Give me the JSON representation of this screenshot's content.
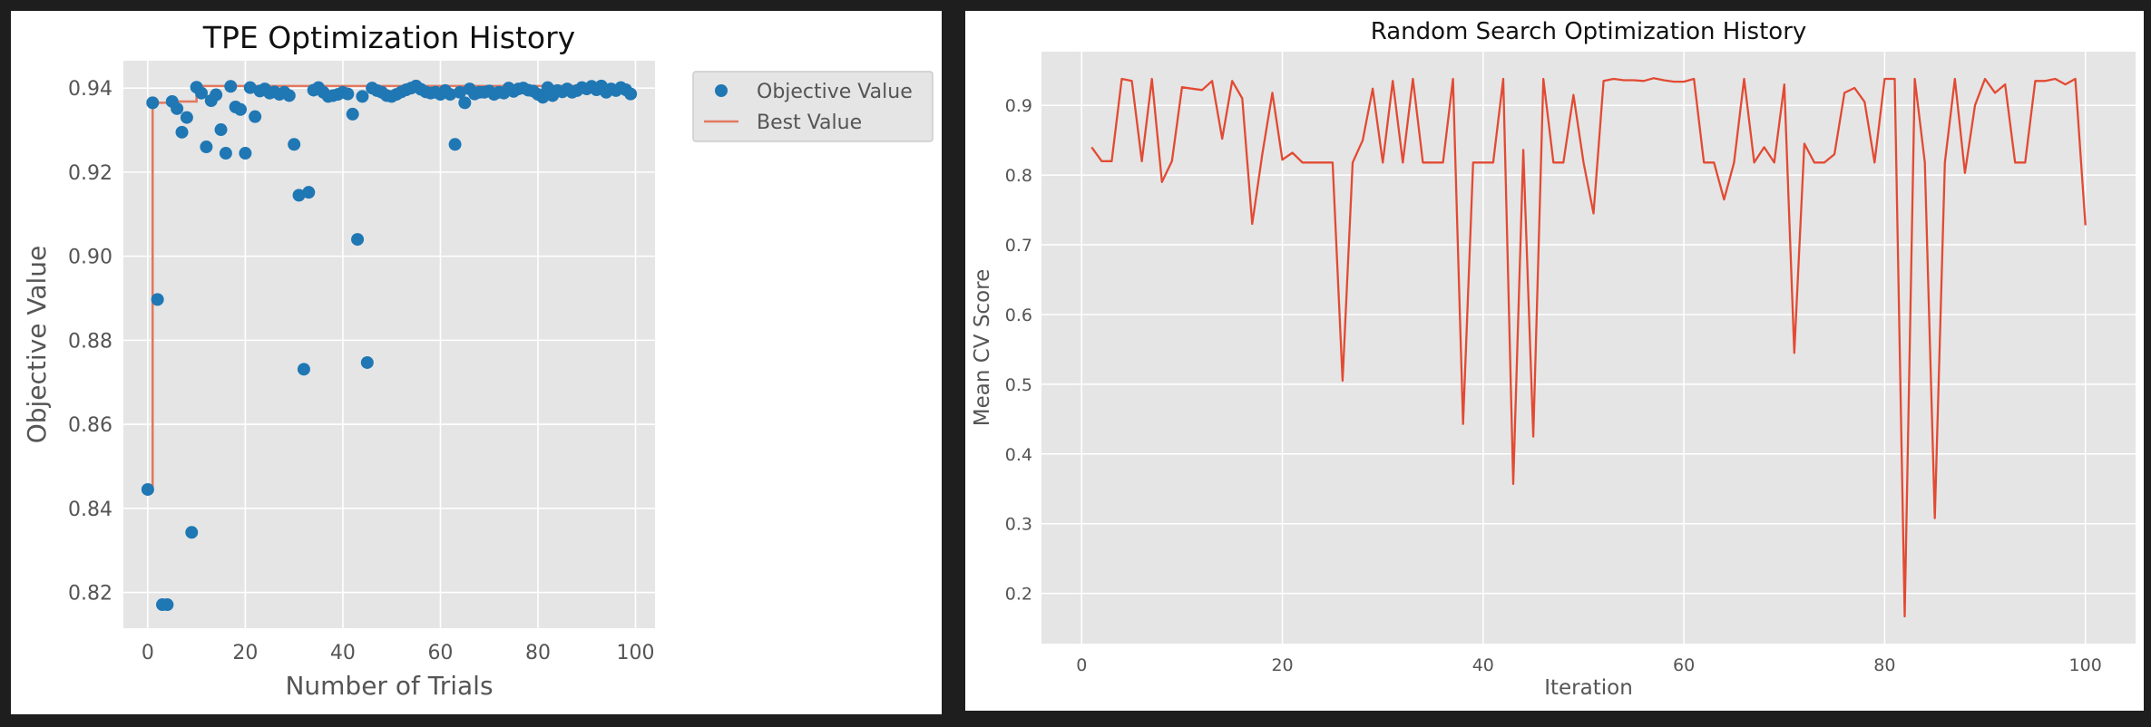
{
  "chart_data": [
    {
      "type": "scatter",
      "title": "TPE Optimization History",
      "xlabel": "Number of Trials",
      "ylabel": "Objective Value",
      "xlim": [
        -5,
        104
      ],
      "ylim": [
        0.8115,
        0.9465
      ],
      "xticks": [
        0,
        20,
        40,
        60,
        80,
        100
      ],
      "yticks": [
        0.82,
        0.84,
        0.86,
        0.88,
        0.9,
        0.92,
        0.94
      ],
      "ytick_labels": [
        "0.82",
        "0.84",
        "0.86",
        "0.88",
        "0.90",
        "0.92",
        "0.94"
      ],
      "grid": true,
      "legend_position": "outside-top-right",
      "series": [
        {
          "name": "Objective Value",
          "kind": "scatter",
          "color": "#1f77b4",
          "x": [
            0,
            1,
            2,
            3,
            4,
            5,
            6,
            7,
            8,
            9,
            10,
            11,
            12,
            13,
            14,
            15,
            16,
            17,
            18,
            19,
            20,
            21,
            22,
            23,
            24,
            25,
            26,
            27,
            28,
            29,
            30,
            31,
            32,
            33,
            34,
            35,
            36,
            37,
            38,
            39,
            40,
            41,
            42,
            43,
            44,
            45,
            46,
            47,
            48,
            49,
            50,
            51,
            52,
            53,
            54,
            55,
            56,
            57,
            58,
            59,
            60,
            61,
            62,
            63,
            64,
            65,
            66,
            67,
            68,
            69,
            70,
            71,
            72,
            73,
            74,
            75,
            76,
            77,
            78,
            79,
            80,
            81,
            82,
            83,
            84,
            85,
            86,
            87,
            88,
            89,
            90,
            91,
            92,
            93,
            94,
            95,
            96,
            97,
            98,
            99
          ],
          "y": [
            0.8445,
            0.9365,
            0.8897,
            0.8171,
            0.8171,
            0.9368,
            0.9351,
            0.9295,
            0.933,
            0.8343,
            0.9402,
            0.9388,
            0.926,
            0.937,
            0.9384,
            0.9301,
            0.9245,
            0.9404,
            0.9355,
            0.9349,
            0.9245,
            0.9401,
            0.9332,
            0.9393,
            0.9398,
            0.9388,
            0.9391,
            0.9385,
            0.939,
            0.9382,
            0.9266,
            0.9145,
            0.8731,
            0.9152,
            0.9395,
            0.9401,
            0.939,
            0.938,
            0.9382,
            0.9385,
            0.939,
            0.9386,
            0.9338,
            0.904,
            0.938,
            0.8747,
            0.94,
            0.9394,
            0.939,
            0.9382,
            0.938,
            0.9385,
            0.9391,
            0.9396,
            0.94,
            0.9405,
            0.9397,
            0.9391,
            0.9388,
            0.939,
            0.9385,
            0.9394,
            0.9385,
            0.9266,
            0.939,
            0.9365,
            0.9398,
            0.9386,
            0.939,
            0.939,
            0.9393,
            0.9385,
            0.939,
            0.9388,
            0.94,
            0.9392,
            0.9398,
            0.94,
            0.9395,
            0.9393,
            0.9385,
            0.9378,
            0.9401,
            0.9382,
            0.9394,
            0.9391,
            0.9398,
            0.939,
            0.9394,
            0.9401,
            0.9398,
            0.9404,
            0.9396,
            0.9405,
            0.939,
            0.9398,
            0.9394,
            0.9401,
            0.9396,
            0.9386
          ]
        },
        {
          "name": "Best Value",
          "kind": "step-line",
          "color": "#e2785f",
          "x": [
            0,
            1,
            5,
            10,
            99
          ],
          "y": [
            0.8445,
            0.9365,
            0.9368,
            0.9405,
            0.9405
          ]
        }
      ]
    },
    {
      "type": "line",
      "title": "Random Search Optimization History",
      "xlabel": "Iteration",
      "ylabel": "Mean CV Score",
      "xlim": [
        -4,
        105
      ],
      "ylim": [
        0.128,
        0.977
      ],
      "xticks": [
        0,
        20,
        40,
        60,
        80,
        100
      ],
      "yticks": [
        0.2,
        0.3,
        0.4,
        0.5,
        0.6,
        0.7,
        0.8,
        0.9
      ],
      "grid": true,
      "series": [
        {
          "color": "#e24a33",
          "x": [
            1,
            2,
            3,
            4,
            5,
            6,
            7,
            8,
            9,
            10,
            11,
            12,
            13,
            14,
            15,
            16,
            17,
            18,
            19,
            20,
            21,
            22,
            23,
            24,
            25,
            26,
            27,
            28,
            29,
            30,
            31,
            32,
            33,
            34,
            35,
            36,
            37,
            38,
            39,
            40,
            41,
            42,
            43,
            44,
            45,
            46,
            47,
            48,
            49,
            50,
            51,
            52,
            53,
            54,
            55,
            56,
            57,
            58,
            59,
            60,
            61,
            62,
            63,
            64,
            65,
            66,
            67,
            68,
            69,
            70,
            71,
            72,
            73,
            74,
            75,
            76,
            77,
            78,
            79,
            80,
            81,
            82,
            83,
            84,
            85,
            86,
            87,
            88,
            89,
            90,
            91,
            92,
            93,
            94,
            95,
            96,
            97,
            98,
            99,
            100
          ],
          "y": [
            0.84,
            0.82,
            0.82,
            0.938,
            0.935,
            0.82,
            0.938,
            0.79,
            0.82,
            0.926,
            0.924,
            0.922,
            0.935,
            0.852,
            0.935,
            0.91,
            0.73,
            0.83,
            0.918,
            0.822,
            0.832,
            0.818,
            0.818,
            0.818,
            0.818,
            0.505,
            0.818,
            0.85,
            0.924,
            0.818,
            0.935,
            0.818,
            0.938,
            0.818,
            0.818,
            0.818,
            0.938,
            0.443,
            0.818,
            0.818,
            0.818,
            0.938,
            0.357,
            0.836,
            0.425,
            0.938,
            0.818,
            0.818,
            0.915,
            0.818,
            0.745,
            0.935,
            0.938,
            0.936,
            0.936,
            0.935,
            0.939,
            0.936,
            0.934,
            0.934,
            0.938,
            0.818,
            0.818,
            0.765,
            0.818,
            0.938,
            0.818,
            0.84,
            0.818,
            0.93,
            0.545,
            0.845,
            0.818,
            0.818,
            0.83,
            0.918,
            0.925,
            0.905,
            0.818,
            0.938,
            0.938,
            0.167,
            0.938,
            0.818,
            0.308,
            0.818,
            0.938,
            0.803,
            0.9,
            0.938,
            0.918,
            0.93,
            0.818,
            0.818,
            0.935,
            0.935,
            0.938,
            0.93,
            0.938,
            0.728
          ]
        }
      ]
    }
  ]
}
